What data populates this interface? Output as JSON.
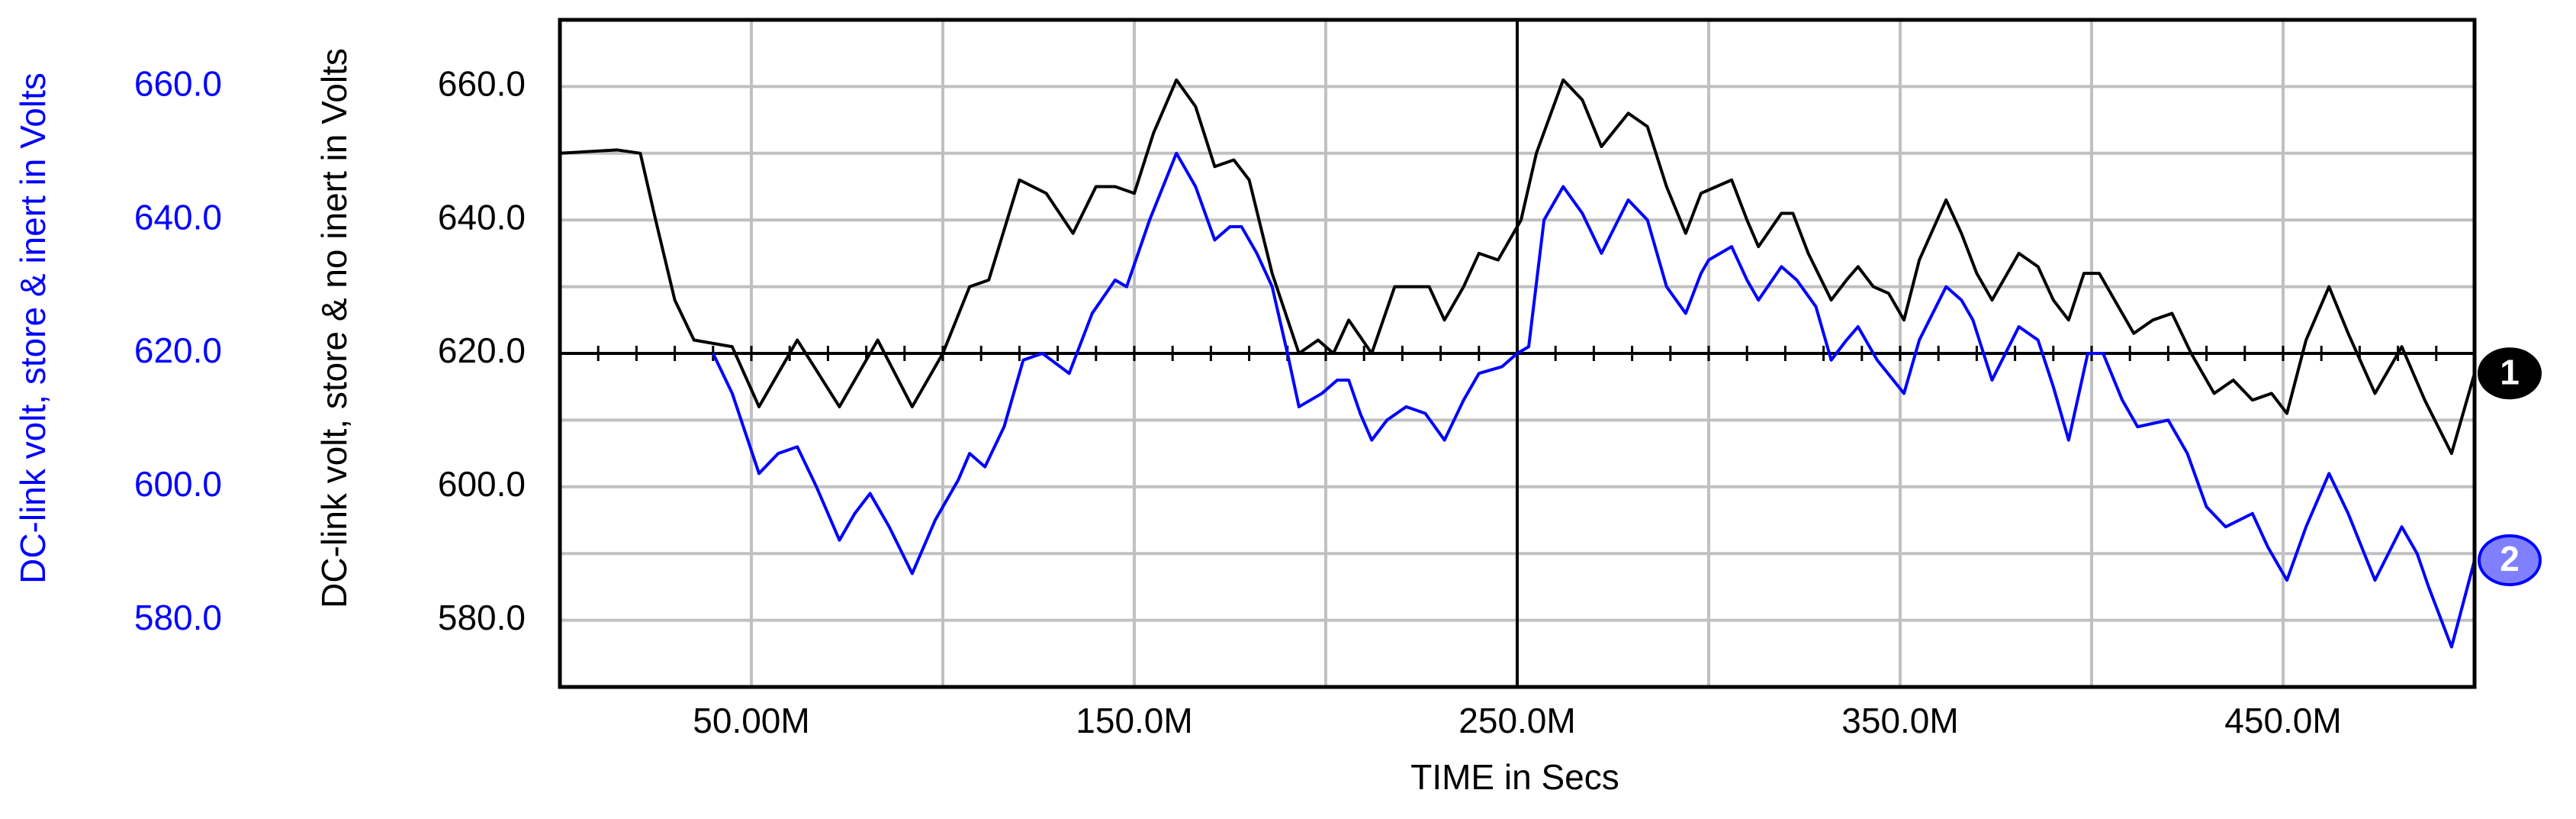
{
  "chart_data": {
    "type": "line",
    "xlabel": "TIME in Secs",
    "ylabel": "DC-link volt, store & no inert in Volts",
    "y2label": "DC-link volt, store & inert in Volts",
    "xlim": [
      0,
      0.5
    ],
    "xticks": [
      {
        "value": 0.05,
        "label": "50.00M"
      },
      {
        "value": 0.15,
        "label": "150.0M"
      },
      {
        "value": 0.25,
        "label": "250.0M"
      },
      {
        "value": 0.35,
        "label": "350.0M"
      },
      {
        "value": 0.45,
        "label": "450.0M"
      }
    ],
    "x_minor_grid": [
      0.1,
      0.2,
      0.3,
      0.4
    ],
    "ylim": [
      570,
      670
    ],
    "yticks": [
      {
        "value": 580,
        "label": "580.0"
      },
      {
        "value": 600,
        "label": "600.0"
      },
      {
        "value": 620,
        "label": "620.0"
      },
      {
        "value": 640,
        "label": "640.0"
      },
      {
        "value": 660,
        "label": "660.0"
      }
    ],
    "y_minor_grid": [
      590,
      610,
      630,
      650
    ],
    "y2lim": [
      570,
      670
    ],
    "y2ticks": [
      {
        "value": 580,
        "label": "580.0"
      },
      {
        "value": 600,
        "label": "600.0"
      },
      {
        "value": 620,
        "label": "620.0"
      },
      {
        "value": 640,
        "label": "640.0"
      },
      {
        "value": 660,
        "label": "660.0"
      }
    ],
    "grid": true,
    "cursor_x": 0.25,
    "cursor_y": 620,
    "series": [
      {
        "label": "1",
        "color": "#000000",
        "axis": "y",
        "x": [
          0,
          0.015,
          0.021,
          0.025,
          0.03,
          0.035,
          0.045,
          0.052,
          0.062,
          0.073,
          0.083,
          0.092,
          0.1,
          0.107,
          0.112,
          0.12,
          0.127,
          0.134,
          0.14,
          0.145,
          0.15,
          0.155,
          0.161,
          0.166,
          0.171,
          0.176,
          0.18,
          0.186,
          0.193,
          0.198,
          0.202,
          0.206,
          0.212,
          0.218,
          0.227,
          0.231,
          0.236,
          0.24,
          0.245,
          0.248,
          0.251,
          0.255,
          0.262,
          0.267,
          0.272,
          0.279,
          0.284,
          0.289,
          0.294,
          0.298,
          0.302,
          0.306,
          0.31,
          0.313,
          0.319,
          0.322,
          0.326,
          0.332,
          0.336,
          0.339,
          0.343,
          0.347,
          0.351,
          0.355,
          0.362,
          0.366,
          0.37,
          0.374,
          0.381,
          0.386,
          0.39,
          0.394,
          0.398,
          0.402,
          0.406,
          0.411,
          0.416,
          0.421,
          0.426,
          0.432,
          0.437,
          0.442,
          0.447,
          0.451,
          0.456,
          0.462,
          0.467,
          0.474,
          0.481,
          0.487,
          0.494,
          0.5
        ],
        "values": [
          650,
          650.5,
          650,
          640,
          628,
          622,
          621,
          612,
          622,
          612,
          622,
          612,
          620,
          630,
          631,
          646,
          644,
          638,
          645,
          645,
          644,
          653,
          661,
          657,
          648,
          649,
          646,
          632,
          620,
          622,
          620,
          625,
          620,
          630,
          630,
          625,
          630,
          635,
          634,
          637,
          640,
          650,
          661,
          658,
          651,
          656,
          654,
          645,
          638,
          644,
          645,
          646,
          640,
          636,
          641,
          641,
          635,
          628,
          631,
          633,
          630,
          629,
          625,
          634,
          643,
          638,
          632,
          628,
          635,
          633,
          628,
          625,
          632,
          632,
          628,
          623,
          625,
          626,
          620,
          614,
          616,
          613,
          614,
          611,
          622,
          630,
          623,
          614,
          621,
          613,
          605,
          617
        ]
      },
      {
        "label": "2",
        "color": "#0000ff",
        "axis": "y2",
        "x": [
          0.04,
          0.045,
          0.052,
          0.057,
          0.062,
          0.067,
          0.073,
          0.077,
          0.081,
          0.086,
          0.092,
          0.098,
          0.104,
          0.107,
          0.111,
          0.116,
          0.121,
          0.126,
          0.133,
          0.139,
          0.145,
          0.148,
          0.154,
          0.161,
          0.166,
          0.171,
          0.175,
          0.178,
          0.182,
          0.186,
          0.19,
          0.193,
          0.199,
          0.203,
          0.206,
          0.209,
          0.212,
          0.216,
          0.221,
          0.226,
          0.231,
          0.236,
          0.24,
          0.246,
          0.25,
          0.253,
          0.257,
          0.262,
          0.267,
          0.272,
          0.279,
          0.284,
          0.289,
          0.294,
          0.298,
          0.3,
          0.306,
          0.31,
          0.313,
          0.319,
          0.323,
          0.328,
          0.332,
          0.336,
          0.339,
          0.344,
          0.351,
          0.355,
          0.362,
          0.366,
          0.369,
          0.374,
          0.381,
          0.386,
          0.39,
          0.394,
          0.399,
          0.403,
          0.408,
          0.412,
          0.42,
          0.425,
          0.43,
          0.435,
          0.442,
          0.446,
          0.451,
          0.456,
          0.462,
          0.467,
          0.474,
          0.481,
          0.485,
          0.488,
          0.494,
          0.5
        ],
        "values": [
          620,
          614,
          602,
          605,
          606,
          600,
          592,
          596,
          599,
          594,
          587,
          595,
          601,
          605,
          603,
          609,
          619,
          620,
          617,
          626,
          631,
          630,
          640,
          650,
          645,
          637,
          639,
          639,
          635,
          630,
          620,
          612,
          614,
          616,
          616,
          611,
          607,
          610,
          612,
          611,
          607,
          613,
          617,
          618,
          620,
          621,
          640,
          645,
          641,
          635,
          643,
          640,
          630,
          626,
          632,
          634,
          636,
          631,
          628,
          633,
          631,
          627,
          619,
          622,
          624,
          619,
          614,
          622,
          630,
          628,
          625,
          616,
          624,
          622,
          615,
          607,
          620,
          620,
          613,
          609,
          610,
          605,
          597,
          594,
          596,
          591,
          586,
          594,
          602,
          596,
          586,
          594,
          590,
          585,
          576,
          589
        ]
      }
    ]
  }
}
